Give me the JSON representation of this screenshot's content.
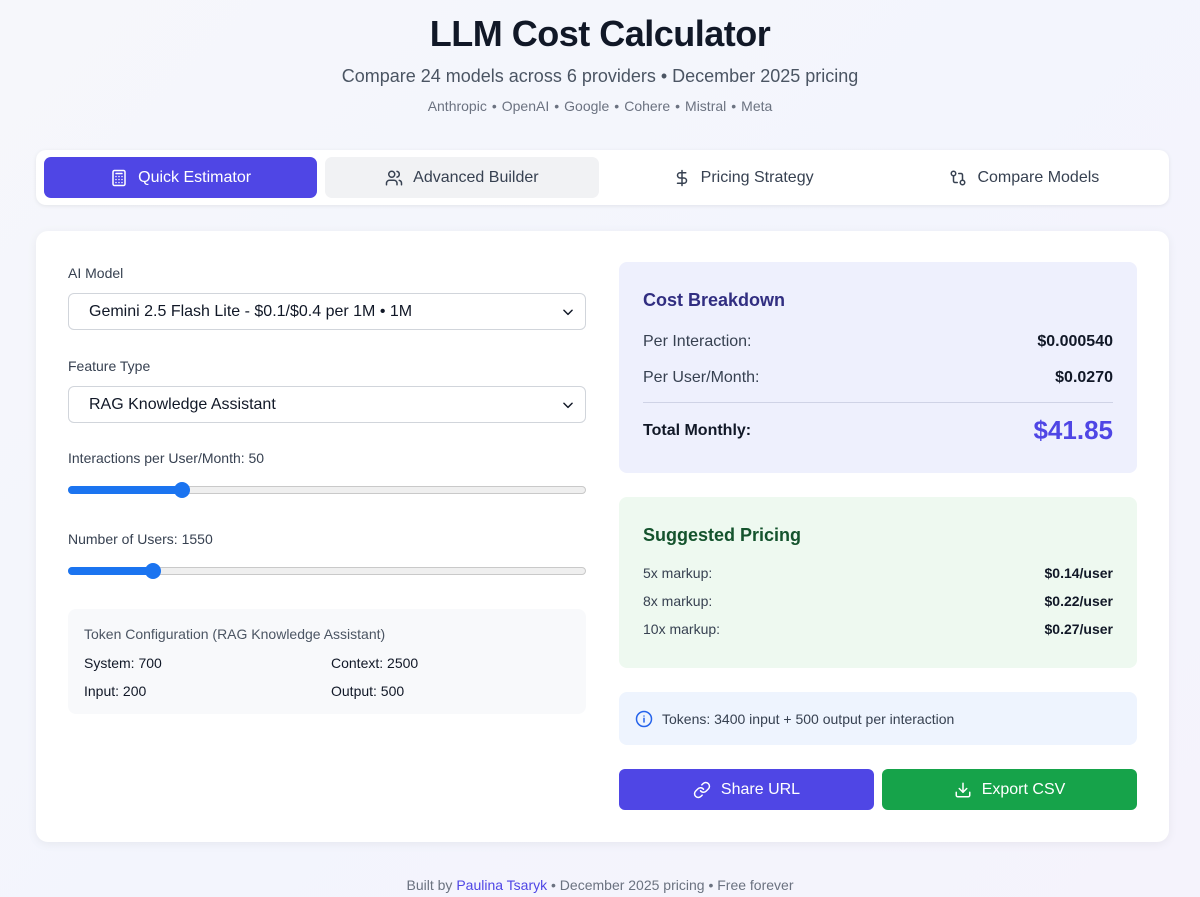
{
  "header": {
    "title": "LLM Cost Calculator",
    "subtitle": "Compare 24 models across 6 providers • December 2025 pricing",
    "providers": [
      "Anthropic",
      "OpenAI",
      "Google",
      "Cohere",
      "Mistral",
      "Meta"
    ]
  },
  "tabs": [
    {
      "label": "Quick Estimator",
      "icon": "calculator-icon",
      "active": true
    },
    {
      "label": "Advanced Builder",
      "icon": "users-icon",
      "active": false
    },
    {
      "label": "Pricing Strategy",
      "icon": "dollar-icon",
      "active": false
    },
    {
      "label": "Compare Models",
      "icon": "git-compare-icon",
      "active": false
    }
  ],
  "form": {
    "model_label": "AI Model",
    "model_value": "Gemini 2.5 Flash Lite - $0.1/$0.4 per 1M • 1M",
    "feature_label": "Feature Type",
    "feature_value": "RAG Knowledge Assistant",
    "interactions_label": "Interactions per User/Month: 50",
    "interactions_fraction": 0.22,
    "users_label": "Number of Users: 1550",
    "users_fraction": 0.165
  },
  "tokens": {
    "title": "Token Configuration (RAG Knowledge Assistant)",
    "system": "System: 700",
    "context": "Context: 2500",
    "input": "Input: 200",
    "output": "Output: 500"
  },
  "breakdown": {
    "title": "Cost Breakdown",
    "per_interaction_label": "Per Interaction:",
    "per_interaction_value": "$0.000540",
    "per_user_label": "Per User/Month:",
    "per_user_value": "$0.0270",
    "total_label": "Total Monthly:",
    "total_value": "$41.85"
  },
  "suggested": {
    "title": "Suggested Pricing",
    "rows": [
      {
        "label": "5x markup:",
        "value": "$0.14/user"
      },
      {
        "label": "8x markup:",
        "value": "$0.22/user"
      },
      {
        "label": "10x markup:",
        "value": "$0.27/user"
      }
    ]
  },
  "info": {
    "text": "Tokens: 3400 input + 500 output per interaction",
    "icon": "info-icon"
  },
  "actions": {
    "share_label": "Share URL",
    "export_label": "Export CSV"
  },
  "footer": {
    "prefix": "Built by",
    "author": "Paulina Tsaryk",
    "suffix": "• December 2025 pricing • Free forever"
  },
  "colors": {
    "primary": "#4f46e5",
    "success": "#16a34a",
    "slider": "#1b74f0"
  }
}
